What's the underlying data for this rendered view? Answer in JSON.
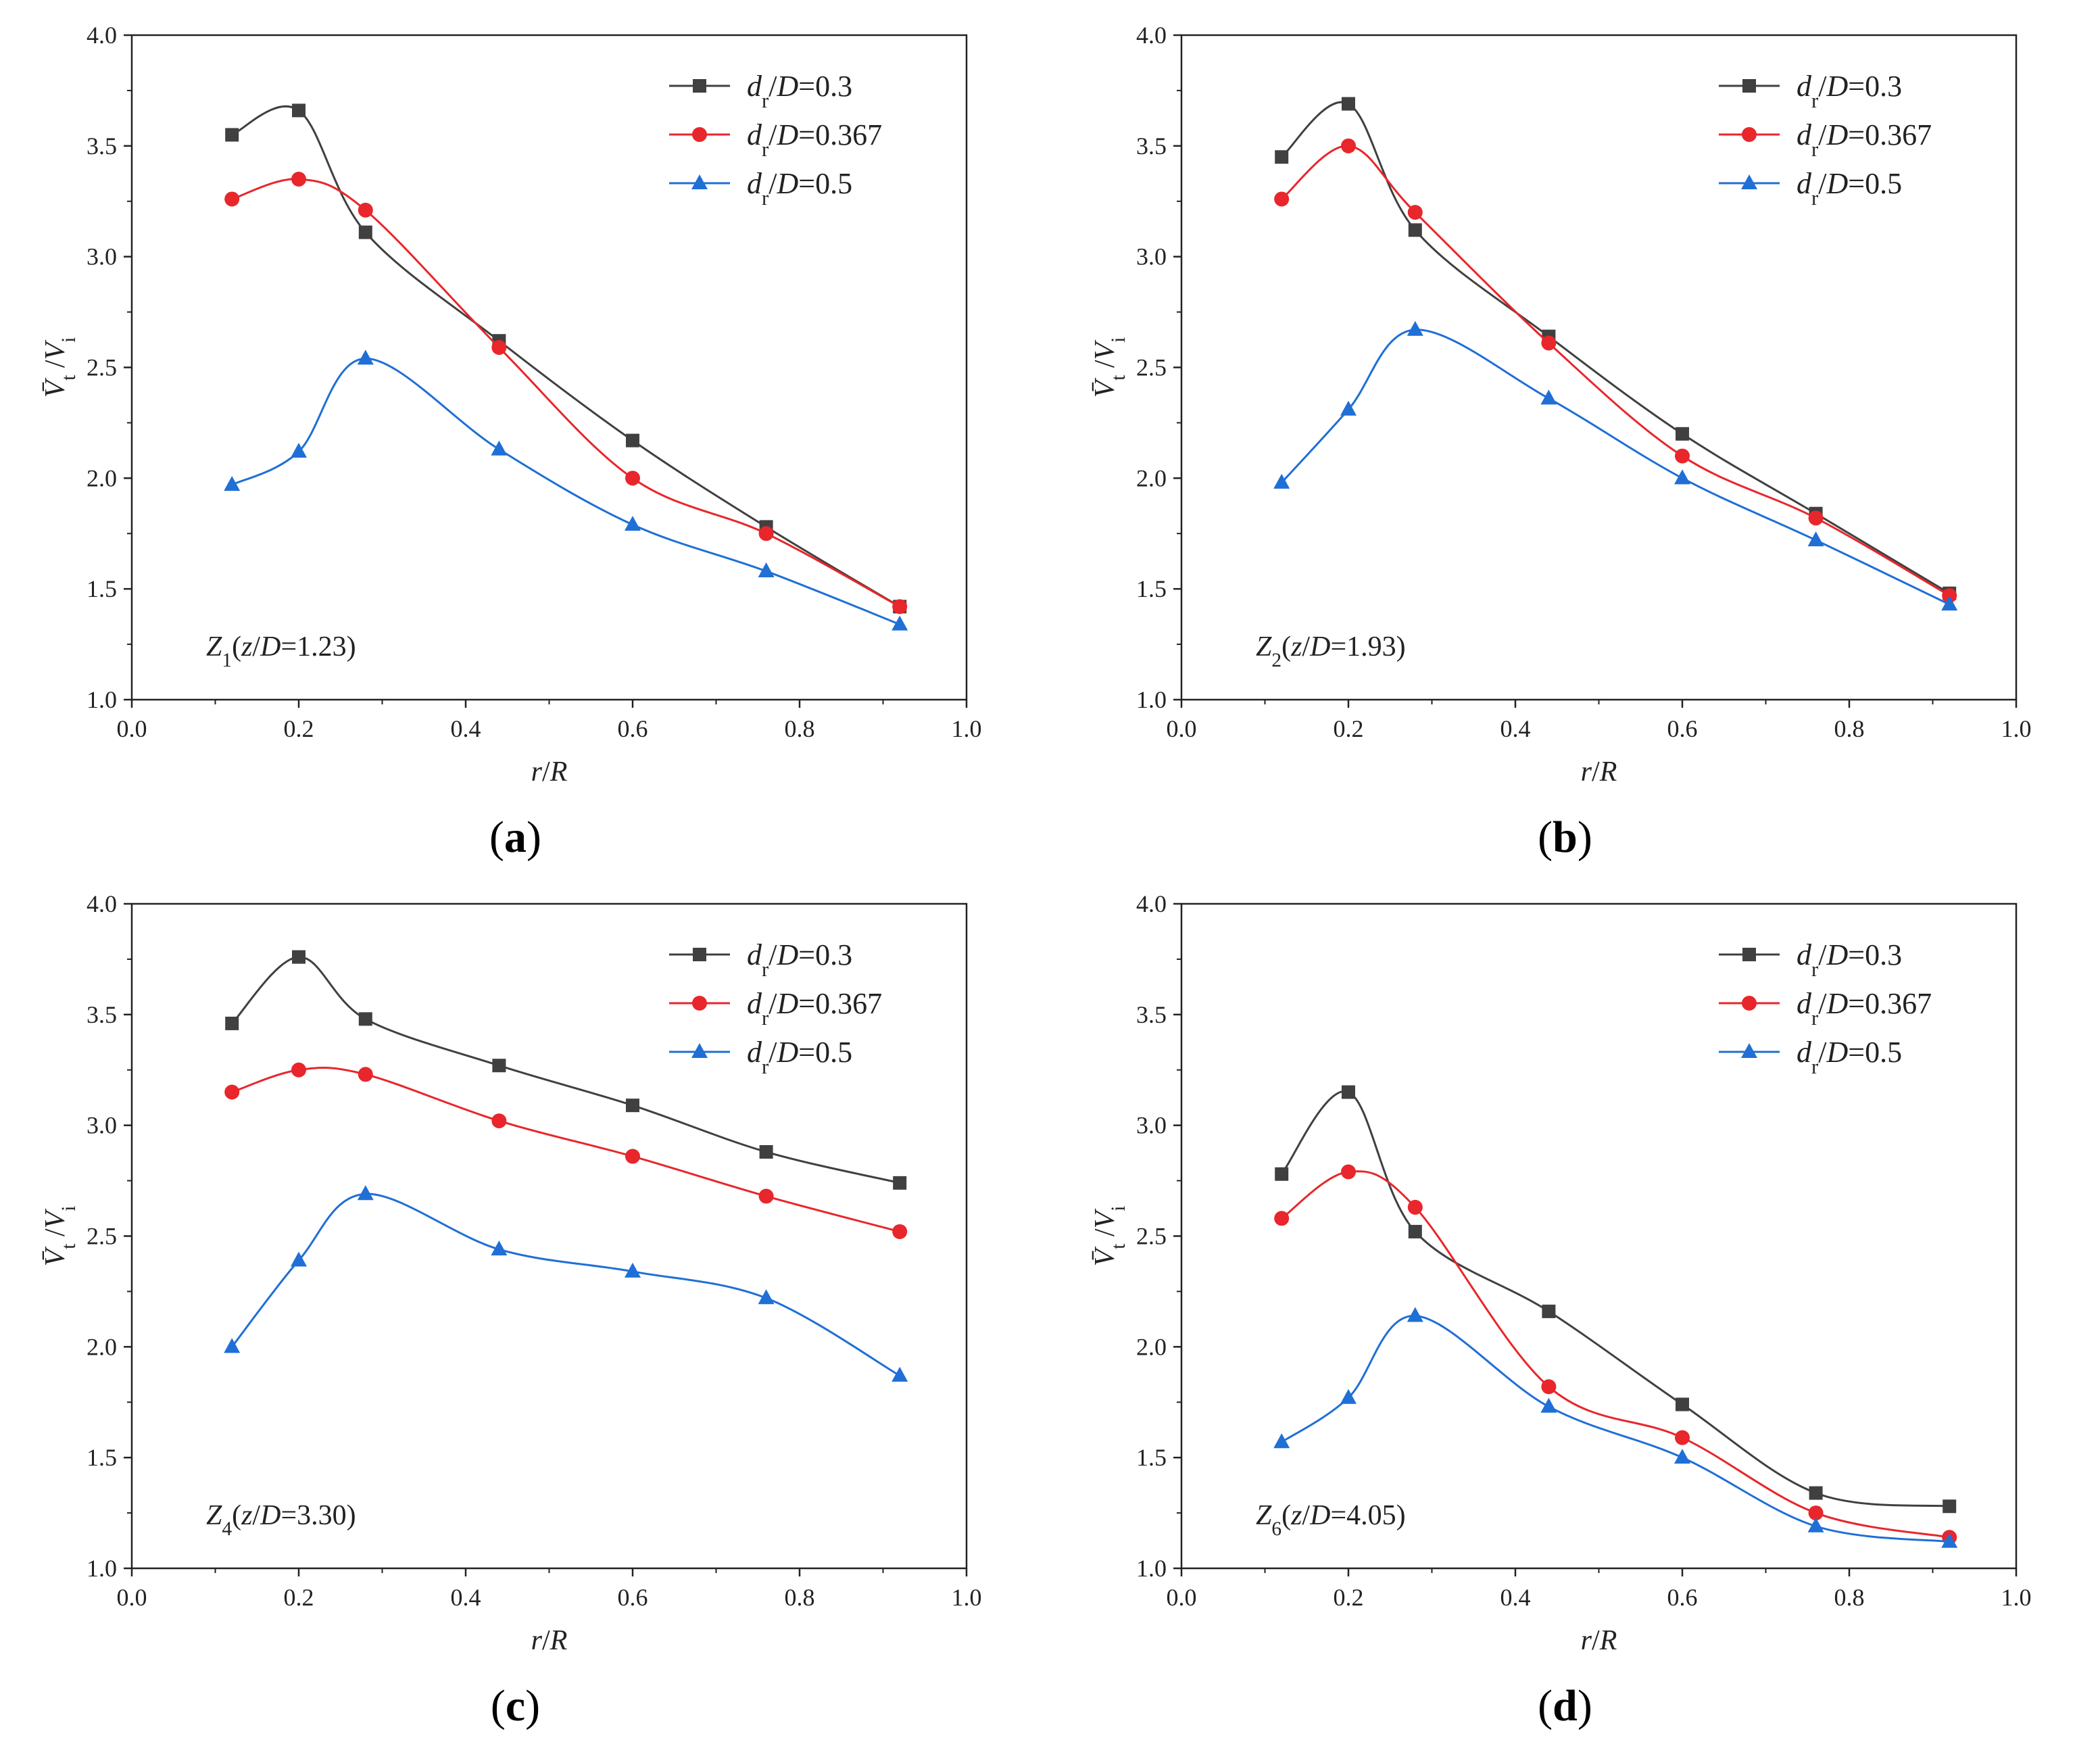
{
  "figure": {
    "x_axis_title": "r/R",
    "y_axis_title": "V̄t/Vi",
    "legend_labels": [
      "dr/D=0.3",
      "dr/D=0.367",
      "dr/D=0.5"
    ]
  },
  "chart_data": [
    {
      "type": "line",
      "panel_label": "(a)",
      "annotation": "Z1(z/D=1.23)",
      "xlabel": "r/R",
      "ylabel": "V̄t/Vi",
      "xlim": [
        0.0,
        1.0
      ],
      "ylim": [
        1.0,
        4.0
      ],
      "xticks": [
        "0.0",
        "0.2",
        "0.4",
        "0.6",
        "0.8",
        "1.0"
      ],
      "yticks": [
        "1.0",
        "1.5",
        "2.0",
        "2.5",
        "3.0",
        "3.5",
        "4.0"
      ],
      "series": [
        {
          "name": "dr/D=0.3",
          "color": "#404040",
          "marker": "square",
          "x": [
            0.12,
            0.2,
            0.28,
            0.44,
            0.6,
            0.76,
            0.92
          ],
          "y": [
            3.55,
            3.66,
            3.11,
            2.62,
            2.17,
            1.78,
            1.42
          ]
        },
        {
          "name": "dr/D=0.367",
          "color": "#e8262b",
          "marker": "circle",
          "x": [
            0.12,
            0.2,
            0.28,
            0.44,
            0.6,
            0.76,
            0.92
          ],
          "y": [
            3.26,
            3.35,
            3.21,
            2.59,
            2.0,
            1.75,
            1.42
          ]
        },
        {
          "name": "dr/D=0.5",
          "color": "#1f6fd6",
          "marker": "triangle",
          "x": [
            0.12,
            0.2,
            0.28,
            0.44,
            0.6,
            0.76,
            0.92
          ],
          "y": [
            1.97,
            2.12,
            2.54,
            2.13,
            1.79,
            1.58,
            1.34
          ]
        }
      ]
    },
    {
      "type": "line",
      "panel_label": "(b)",
      "annotation": "Z2(z/D=1.93)",
      "xlabel": "r/R",
      "ylabel": "V̄t/Vi",
      "xlim": [
        0.0,
        1.0
      ],
      "ylim": [
        1.0,
        4.0
      ],
      "xticks": [
        "0.0",
        "0.2",
        "0.4",
        "0.6",
        "0.8",
        "1.0"
      ],
      "yticks": [
        "1.0",
        "1.5",
        "2.0",
        "2.5",
        "3.0",
        "3.5",
        "4.0"
      ],
      "series": [
        {
          "name": "dr/D=0.3",
          "color": "#404040",
          "marker": "square",
          "x": [
            0.12,
            0.2,
            0.28,
            0.44,
            0.6,
            0.76,
            0.92
          ],
          "y": [
            3.45,
            3.69,
            3.12,
            2.64,
            2.2,
            1.84,
            1.48
          ]
        },
        {
          "name": "dr/D=0.367",
          "color": "#e8262b",
          "marker": "circle",
          "x": [
            0.12,
            0.2,
            0.28,
            0.44,
            0.6,
            0.76,
            0.92
          ],
          "y": [
            3.26,
            3.5,
            3.2,
            2.61,
            2.1,
            1.82,
            1.47
          ]
        },
        {
          "name": "dr/D=0.5",
          "color": "#1f6fd6",
          "marker": "triangle",
          "x": [
            0.12,
            0.2,
            0.28,
            0.44,
            0.6,
            0.76,
            0.92
          ],
          "y": [
            1.98,
            2.31,
            2.67,
            2.36,
            2.0,
            1.72,
            1.43
          ]
        }
      ]
    },
    {
      "type": "line",
      "panel_label": "(c)",
      "annotation": "Z4(z/D=3.30)",
      "xlabel": "r/R",
      "ylabel": "V̄t/Vi",
      "xlim": [
        0.0,
        1.0
      ],
      "ylim": [
        1.0,
        4.0
      ],
      "xticks": [
        "0.0",
        "0.2",
        "0.4",
        "0.6",
        "0.8",
        "1.0"
      ],
      "yticks": [
        "1.0",
        "1.5",
        "2.0",
        "2.5",
        "3.0",
        "3.5",
        "4.0"
      ],
      "series": [
        {
          "name": "dr/D=0.3",
          "color": "#404040",
          "marker": "square",
          "x": [
            0.12,
            0.2,
            0.28,
            0.44,
            0.6,
            0.76,
            0.92
          ],
          "y": [
            3.46,
            3.76,
            3.48,
            3.27,
            3.09,
            2.88,
            2.74
          ]
        },
        {
          "name": "dr/D=0.367",
          "color": "#e8262b",
          "marker": "circle",
          "x": [
            0.12,
            0.2,
            0.28,
            0.44,
            0.6,
            0.76,
            0.92
          ],
          "y": [
            3.15,
            3.25,
            3.23,
            3.02,
            2.86,
            2.68,
            2.52
          ]
        },
        {
          "name": "dr/D=0.5",
          "color": "#1f6fd6",
          "marker": "triangle",
          "x": [
            0.12,
            0.2,
            0.28,
            0.44,
            0.6,
            0.76,
            0.92
          ],
          "y": [
            2.0,
            2.39,
            2.69,
            2.44,
            2.34,
            2.22,
            1.87
          ]
        }
      ]
    },
    {
      "type": "line",
      "panel_label": "(d)",
      "annotation": "Z6(z/D=4.05)",
      "xlabel": "r/R",
      "ylabel": "V̄t/Vi",
      "xlim": [
        0.0,
        1.0
      ],
      "ylim": [
        1.0,
        4.0
      ],
      "xticks": [
        "0.0",
        "0.2",
        "0.4",
        "0.6",
        "0.8",
        "1.0"
      ],
      "yticks": [
        "1.0",
        "1.5",
        "2.0",
        "2.5",
        "3.0",
        "3.5",
        "4.0"
      ],
      "series": [
        {
          "name": "dr/D=0.3",
          "color": "#404040",
          "marker": "square",
          "x": [
            0.12,
            0.2,
            0.28,
            0.44,
            0.6,
            0.76,
            0.92
          ],
          "y": [
            2.78,
            3.15,
            2.52,
            2.16,
            1.74,
            1.34,
            1.28
          ]
        },
        {
          "name": "dr/D=0.367",
          "color": "#e8262b",
          "marker": "circle",
          "x": [
            0.12,
            0.2,
            0.28,
            0.44,
            0.6,
            0.76,
            0.92
          ],
          "y": [
            2.58,
            2.79,
            2.63,
            1.82,
            1.59,
            1.25,
            1.14
          ]
        },
        {
          "name": "dr/D=0.5",
          "color": "#1f6fd6",
          "marker": "triangle",
          "x": [
            0.12,
            0.2,
            0.28,
            0.44,
            0.6,
            0.76,
            0.92
          ],
          "y": [
            1.57,
            1.77,
            2.14,
            1.73,
            1.5,
            1.19,
            1.12
          ]
        }
      ]
    }
  ]
}
